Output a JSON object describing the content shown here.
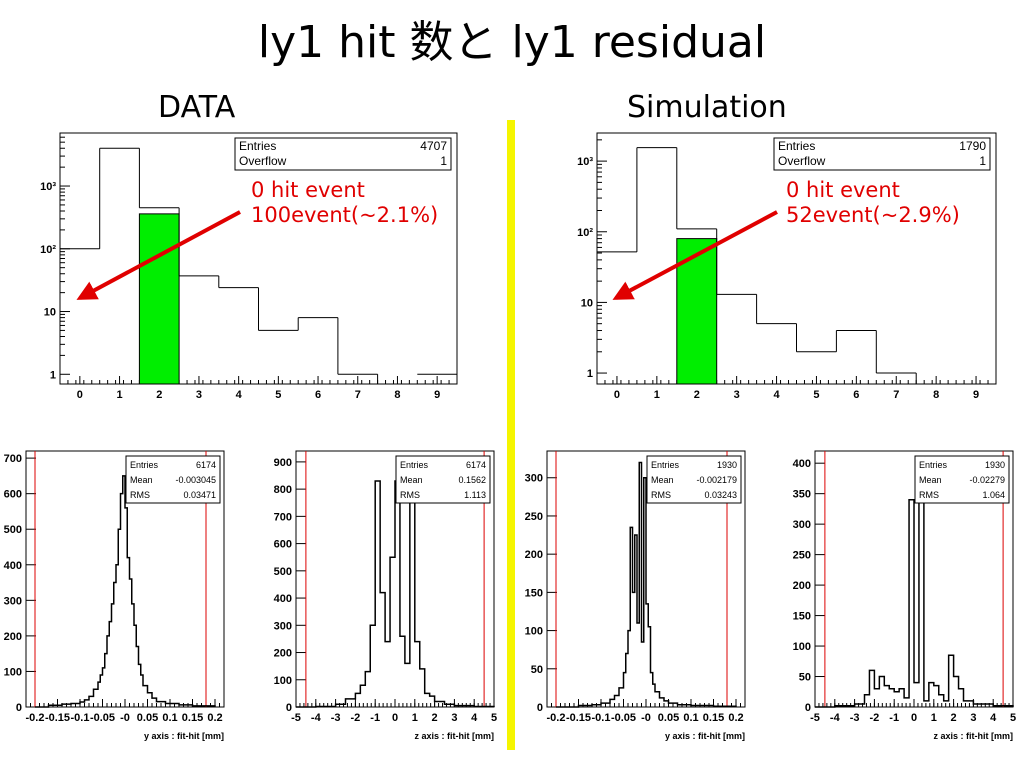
{
  "slide": {
    "title": "ly1 hit 数と ly1 residual",
    "left_label": "DATA",
    "right_label": "Simulation"
  },
  "annotations": {
    "data": {
      "line1": "0 hit event",
      "line2": "100event(~2.1%)"
    },
    "sim": {
      "line1": "0 hit event",
      "line2": "52event(~2.9%)"
    }
  },
  "colors": {
    "highlight_bar": "#00ee00",
    "arrow": "#e00000",
    "limit_lines": "#dd0000",
    "divider": "#f5f500"
  },
  "chart_data": [
    {
      "id": "data-hits",
      "type": "bar",
      "log_y": true,
      "xlim": [
        -0.5,
        9.5
      ],
      "ylim": [
        0.7,
        7000
      ],
      "x_ticks": [
        0,
        1,
        2,
        3,
        4,
        5,
        6,
        7,
        8,
        9
      ],
      "y_ticks": [
        {
          "v": 1,
          "label": "1"
        },
        {
          "v": 10,
          "label": "10"
        },
        {
          "v": 100,
          "label": "10²"
        },
        {
          "v": 1000,
          "label": "10³"
        }
      ],
      "bin_edges": [
        -0.5,
        0.5,
        1.5,
        2.5,
        3.5,
        4.5,
        5.5,
        6.5,
        7.5,
        8.5,
        9.5
      ],
      "values": [
        100,
        4000,
        450,
        37,
        24,
        5,
        8,
        1,
        0,
        1
      ],
      "highlight_bin": 2,
      "highlight_value": 360,
      "stats": [
        {
          "label": "Entries",
          "value": "4707"
        },
        {
          "label": "Overflow",
          "value": "1"
        }
      ]
    },
    {
      "id": "sim-hits",
      "type": "bar",
      "log_y": true,
      "xlim": [
        -0.5,
        9.5
      ],
      "ylim": [
        0.7,
        2500
      ],
      "x_ticks": [
        0,
        1,
        2,
        3,
        4,
        5,
        6,
        7,
        8,
        9
      ],
      "y_ticks": [
        {
          "v": 1,
          "label": "1"
        },
        {
          "v": 10,
          "label": "10"
        },
        {
          "v": 100,
          "label": "10²"
        },
        {
          "v": 1000,
          "label": "10³"
        }
      ],
      "bin_edges": [
        -0.5,
        0.5,
        1.5,
        2.5,
        3.5,
        4.5,
        5.5,
        6.5,
        7.5,
        8.5,
        9.5
      ],
      "values": [
        52,
        1550,
        110,
        13,
        5,
        2,
        4,
        1,
        0,
        0
      ],
      "highlight_bin": 2,
      "highlight_value": 80,
      "stats": [
        {
          "label": "Entries",
          "value": "1790"
        },
        {
          "label": "Overflow",
          "value": "1"
        }
      ]
    },
    {
      "id": "data-y",
      "type": "line",
      "xlabel": "y axis : fit-hit [mm]",
      "xlim": [
        -0.22,
        0.22
      ],
      "ylim": [
        0,
        720
      ],
      "x_ticks": [
        {
          "v": -0.2,
          "label": "-0.2"
        },
        {
          "v": -0.15,
          "label": "-0.15"
        },
        {
          "v": -0.1,
          "label": "-0.1"
        },
        {
          "v": -0.05,
          "label": "-0.05"
        },
        {
          "v": 0,
          "label": "-0"
        },
        {
          "v": 0.05,
          "label": "0.05"
        },
        {
          "v": 0.1,
          "label": "0.1"
        },
        {
          "v": 0.15,
          "label": "0.15"
        },
        {
          "v": 0.2,
          "label": "0.2"
        }
      ],
      "y_ticks": [
        0,
        100,
        200,
        300,
        400,
        500,
        600,
        700
      ],
      "limit_lines": [
        -0.2,
        0.18
      ],
      "x": [
        -0.2,
        -0.17,
        -0.14,
        -0.12,
        -0.1,
        -0.09,
        -0.08,
        -0.07,
        -0.06,
        -0.055,
        -0.05,
        -0.045,
        -0.04,
        -0.035,
        -0.03,
        -0.025,
        -0.02,
        -0.015,
        -0.01,
        -0.005,
        0,
        0.005,
        0.01,
        0.015,
        0.02,
        0.025,
        0.03,
        0.035,
        0.04,
        0.05,
        0.06,
        0.07,
        0.09,
        0.12,
        0.15,
        0.2
      ],
      "values": [
        0,
        5,
        8,
        10,
        14,
        20,
        30,
        50,
        70,
        90,
        110,
        150,
        200,
        240,
        290,
        350,
        400,
        500,
        600,
        650,
        560,
        420,
        360,
        290,
        230,
        170,
        120,
        90,
        60,
        40,
        25,
        15,
        10,
        6,
        3,
        0
      ],
      "stats": [
        {
          "label": "Entries",
          "value": "6174"
        },
        {
          "label": "Mean",
          "value": "-0.003045"
        },
        {
          "label": "RMS",
          "value": "0.03471"
        }
      ]
    },
    {
      "id": "data-z",
      "type": "line",
      "xlabel": "z axis : fit-hit [mm]",
      "xlim": [
        -5,
        5
      ],
      "ylim": [
        0,
        940
      ],
      "x_ticks": [
        {
          "v": -5,
          "label": "-5"
        },
        {
          "v": -4,
          "label": "-4"
        },
        {
          "v": -3,
          "label": "-3"
        },
        {
          "v": -2,
          "label": "-2"
        },
        {
          "v": -1,
          "label": "-1"
        },
        {
          "v": 0,
          "label": "0"
        },
        {
          "v": 1,
          "label": "1"
        },
        {
          "v": 2,
          "label": "2"
        },
        {
          "v": 3,
          "label": "3"
        },
        {
          "v": 4,
          "label": "4"
        },
        {
          "v": 5,
          "label": "5"
        }
      ],
      "y_ticks": [
        0,
        100,
        200,
        300,
        400,
        500,
        600,
        700,
        800,
        900
      ],
      "limit_lines": [
        -4.5,
        4.5
      ],
      "x": [
        -5,
        -4,
        -3,
        -2.5,
        -2,
        -1.75,
        -1.5,
        -1.25,
        -1,
        -0.75,
        -0.5,
        -0.25,
        0,
        0.25,
        0.5,
        0.75,
        1,
        1.25,
        1.5,
        1.75,
        2,
        2.5,
        3,
        4,
        5
      ],
      "values": [
        0,
        2,
        10,
        30,
        50,
        80,
        130,
        300,
        830,
        420,
        240,
        550,
        830,
        260,
        160,
        820,
        240,
        140,
        50,
        40,
        20,
        10,
        5,
        2,
        0
      ],
      "stats": [
        {
          "label": "Entries",
          "value": "6174"
        },
        {
          "label": "Mean",
          "value": "0.1562"
        },
        {
          "label": "RMS",
          "value": "1.113"
        }
      ]
    },
    {
      "id": "sim-y",
      "type": "line",
      "xlabel": "y axis : fit-hit [mm]",
      "xlim": [
        -0.22,
        0.22
      ],
      "ylim": [
        0,
        335
      ],
      "x_ticks": [
        {
          "v": -0.2,
          "label": "-0.2"
        },
        {
          "v": -0.15,
          "label": "-0.15"
        },
        {
          "v": -0.1,
          "label": "-0.1"
        },
        {
          "v": -0.05,
          "label": "-0.05"
        },
        {
          "v": 0,
          "label": "-0"
        },
        {
          "v": 0.05,
          "label": "0.05"
        },
        {
          "v": 0.1,
          "label": "0.1"
        },
        {
          "v": 0.15,
          "label": "0.15"
        },
        {
          "v": 0.2,
          "label": "0.2"
        }
      ],
      "y_ticks": [
        0,
        50,
        100,
        150,
        200,
        250,
        300
      ],
      "limit_lines": [
        -0.2,
        0.18
      ],
      "x": [
        -0.2,
        -0.15,
        -0.12,
        -0.1,
        -0.08,
        -0.07,
        -0.06,
        -0.05,
        -0.045,
        -0.04,
        -0.035,
        -0.03,
        -0.025,
        -0.02,
        -0.015,
        -0.01,
        -0.005,
        0,
        0.005,
        0.01,
        0.015,
        0.02,
        0.03,
        0.04,
        0.05,
        0.07,
        0.1,
        0.15,
        0.2
      ],
      "values": [
        0,
        2,
        3,
        5,
        10,
        15,
        25,
        45,
        70,
        100,
        235,
        150,
        225,
        110,
        320,
        85,
        300,
        135,
        105,
        45,
        30,
        20,
        12,
        8,
        5,
        3,
        2,
        1,
        0
      ],
      "stats": [
        {
          "label": "Entries",
          "value": "1930"
        },
        {
          "label": "Mean",
          "value": "-0.002179"
        },
        {
          "label": "RMS",
          "value": "0.03243"
        }
      ]
    },
    {
      "id": "sim-z",
      "type": "line",
      "xlabel": "z axis : fit-hit [mm]",
      "xlim": [
        -5,
        5
      ],
      "ylim": [
        0,
        420
      ],
      "x_ticks": [
        {
          "v": -5,
          "label": "-5"
        },
        {
          "v": -4,
          "label": "-4"
        },
        {
          "v": -3,
          "label": "-3"
        },
        {
          "v": -2,
          "label": "-2"
        },
        {
          "v": -1,
          "label": "-1"
        },
        {
          "v": 0,
          "label": "0"
        },
        {
          "v": 1,
          "label": "1"
        },
        {
          "v": 2,
          "label": "2"
        },
        {
          "v": 3,
          "label": "3"
        },
        {
          "v": 4,
          "label": "4"
        },
        {
          "v": 5,
          "label": "5"
        }
      ],
      "y_ticks": [
        0,
        50,
        100,
        150,
        200,
        250,
        300,
        350,
        400
      ],
      "limit_lines": [
        -4.5,
        4.5
      ],
      "x": [
        -5,
        -4,
        -3,
        -2.5,
        -2.25,
        -2,
        -1.75,
        -1.5,
        -1.25,
        -1,
        -0.75,
        -0.5,
        -0.25,
        0,
        0.25,
        0.5,
        0.75,
        1,
        1.25,
        1.5,
        1.75,
        2,
        2.25,
        2.5,
        3,
        4,
        5
      ],
      "values": [
        0,
        2,
        5,
        20,
        60,
        30,
        50,
        35,
        30,
        25,
        30,
        15,
        340,
        40,
        380,
        10,
        40,
        35,
        20,
        10,
        85,
        50,
        30,
        10,
        5,
        2,
        0
      ],
      "stats": [
        {
          "label": "Entries",
          "value": "1930"
        },
        {
          "label": "Mean",
          "value": "-0.02279"
        },
        {
          "label": "RMS",
          "value": "1.064"
        }
      ]
    }
  ]
}
